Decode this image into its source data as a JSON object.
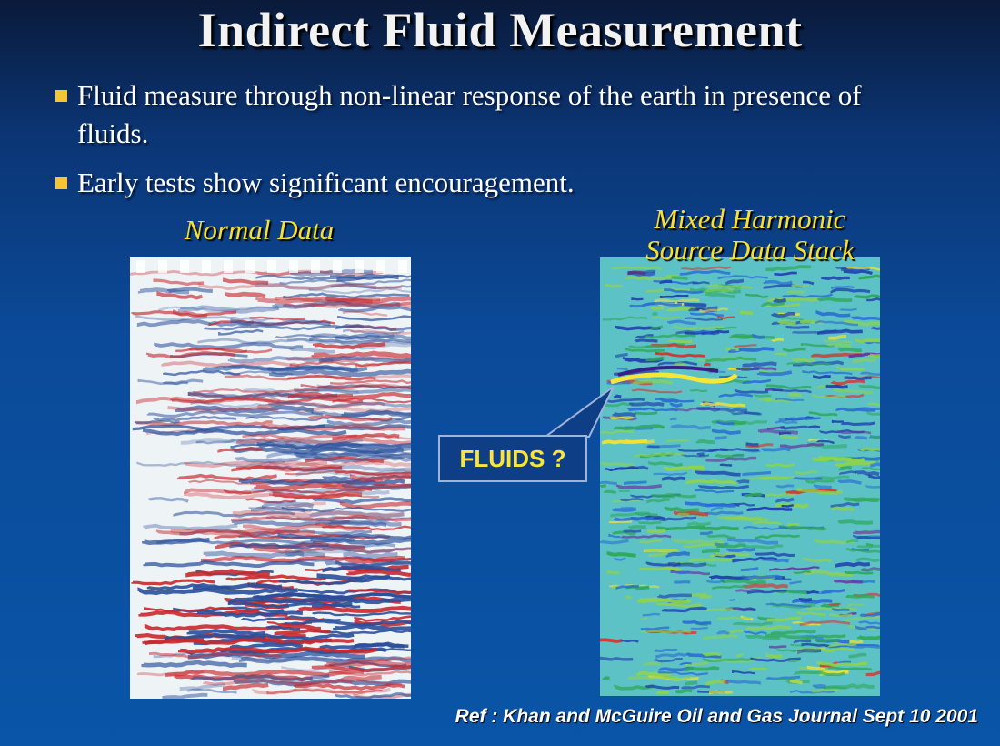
{
  "title": "Indirect Fluid Measurement",
  "bullets": [
    "Fluid measure through non-linear response of the earth in presence of fluids.",
    "Early tests show significant encouragement."
  ],
  "panels": [
    {
      "label": [
        "Normal Data"
      ]
    },
    {
      "label": [
        "Mixed Harmonic",
        "Source Data Stack"
      ]
    }
  ],
  "callout": "FLUIDS ?",
  "reference": "Ref : Khan and McGuire Oil and Gas Journal Sept 10 2001"
}
